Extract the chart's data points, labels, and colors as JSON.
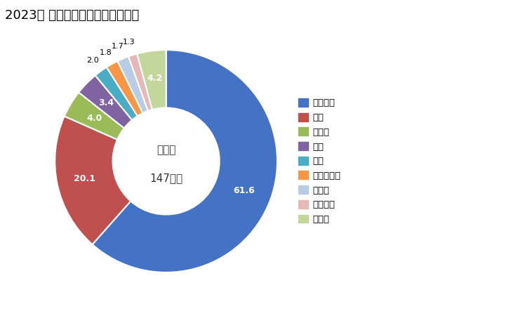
{
  "title": "2023年 輸出相手国のシェア（％）",
  "center_text_line1": "総　額",
  "center_text_line2": "147億円",
  "labels": [
    "オランダ",
    "米国",
    "チェコ",
    "中国",
    "タイ",
    "マレーシア",
    "ドイツ",
    "ベルギー",
    "その他"
  ],
  "values": [
    61.6,
    20.1,
    4.0,
    3.4,
    2.0,
    1.8,
    1.7,
    1.3,
    4.2
  ],
  "colors": [
    "#4472C4",
    "#C0504D",
    "#9BBB59",
    "#8064A2",
    "#4BACC6",
    "#F79646",
    "#B8CCE4",
    "#E6B9B8",
    "#C3D69B"
  ],
  "background_color": "#FFFFFF",
  "startangle": 90,
  "label_colors_inside": [
    "white",
    "white",
    "white",
    "white",
    "black",
    "black",
    "black",
    "black",
    "black"
  ],
  "outer_label_threshold": 3.0
}
